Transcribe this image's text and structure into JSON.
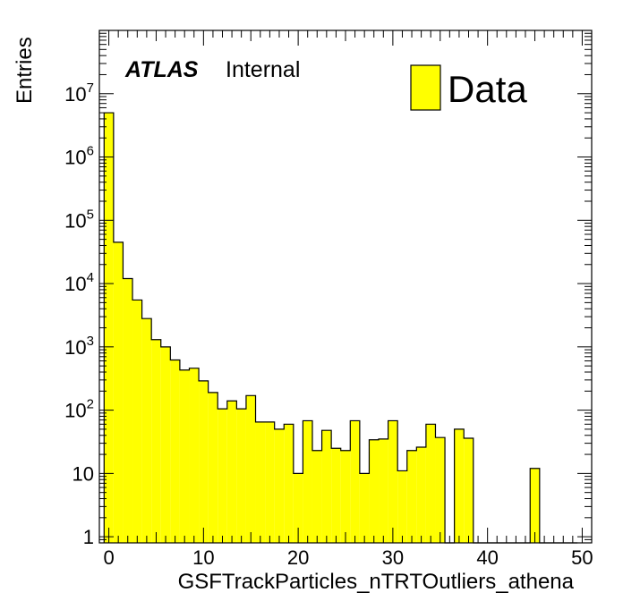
{
  "chart_data": {
    "type": "bar",
    "histogram": true,
    "xlabel": "GSFTrackParticles_nTRTOutliers_athena",
    "ylabel": "Entries",
    "xlim": [
      -1,
      51
    ],
    "ylim": [
      0.8,
      100000000
    ],
    "yscale": "log",
    "bin_width": 1,
    "x_ticks": [
      0,
      10,
      20,
      30,
      40,
      50
    ],
    "y_ticks": [
      {
        "value": 1,
        "label": "1"
      },
      {
        "value": 10,
        "label": "10"
      },
      {
        "value": 100,
        "base": "10",
        "exp": "2"
      },
      {
        "value": 1000,
        "base": "10",
        "exp": "3"
      },
      {
        "value": 10000,
        "base": "10",
        "exp": "4"
      },
      {
        "value": 100000,
        "base": "10",
        "exp": "5"
      },
      {
        "value": 1000000,
        "base": "10",
        "exp": "6"
      },
      {
        "value": 10000000,
        "base": "10",
        "exp": "7"
      }
    ],
    "bin_centers": [
      0,
      1,
      2,
      3,
      4,
      5,
      6,
      7,
      8,
      9,
      10,
      11,
      12,
      13,
      14,
      15,
      16,
      17,
      18,
      19,
      20,
      21,
      22,
      23,
      24,
      25,
      26,
      27,
      28,
      29,
      30,
      31,
      32,
      33,
      34,
      35,
      36,
      37,
      38,
      39,
      40,
      41,
      42,
      43,
      44,
      45,
      46,
      47,
      48,
      49
    ],
    "values": [
      5000000,
      45000,
      12000,
      5500,
      2800,
      1300,
      1000,
      620,
      430,
      460,
      290,
      190,
      105,
      140,
      105,
      170,
      65,
      65,
      50,
      60,
      10,
      68,
      23,
      48,
      25,
      23,
      68,
      10,
      34,
      35,
      68,
      11,
      23,
      26,
      60,
      37,
      0,
      50,
      36,
      0,
      0,
      0,
      0,
      0,
      0,
      12,
      0,
      0,
      0,
      0
    ],
    "series": [
      {
        "name": "Data",
        "color": "#ffff00",
        "edge_color": "#000000"
      }
    ]
  },
  "annotations": {
    "atlas": "ATLAS",
    "internal": "Internal"
  },
  "legend": {
    "label": "Data",
    "placement": "top-right"
  }
}
